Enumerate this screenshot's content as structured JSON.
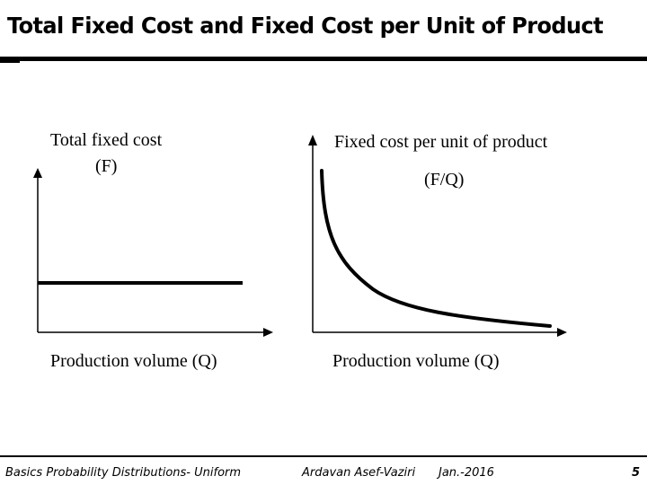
{
  "slide": {
    "title": "Total Fixed Cost and Fixed Cost per Unit of Product"
  },
  "left_graph": {
    "y_label_line1": "Total fixed cost",
    "y_label_line2": "(F)",
    "x_label": "Production volume (Q)"
  },
  "right_graph": {
    "y_label_line1": "Fixed cost per unit of product",
    "y_label_line2": "(F/Q)",
    "x_label": "Production volume (Q)"
  },
  "footer": {
    "course": "Basics Probability Distributions- Uniform",
    "author": "Ardavan Asef-Vaziri",
    "date": "Jan.-2016",
    "page_number": "5"
  }
}
